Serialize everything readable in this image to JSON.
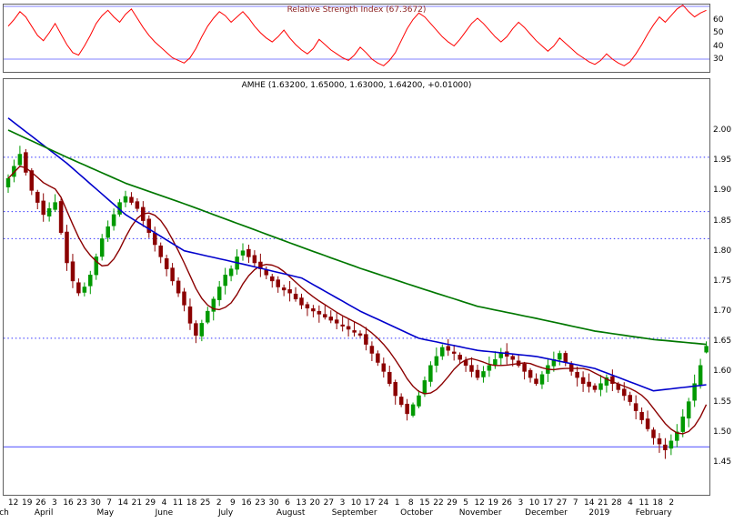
{
  "colors": {
    "background": "#ffffff",
    "border": "#606060",
    "rsi_line": "#ff0000",
    "rsi_ref": "#8080ff",
    "rsi_title": "#8b2020",
    "candle_up": "#009900",
    "candle_down": "#8b0000",
    "ma_long": "#007700",
    "ma_mid": "#0000cc",
    "ma_short": "#8b0000",
    "dotted_line": "#3333ff",
    "solid_line": "#7070ff",
    "text": "#000000"
  },
  "chart_data": [
    {
      "type": "line",
      "name": "rsi",
      "title": "Relative Strength Index (67.3672)",
      "current_value": 67.3672,
      "ylim": [
        22,
        74
      ],
      "yticks": [
        60,
        50,
        40,
        30
      ],
      "ref_lines": [
        70,
        30
      ],
      "legend_position": "top-center",
      "values": [
        55,
        60,
        66,
        62,
        55,
        48,
        44,
        50,
        57,
        49,
        41,
        35,
        33,
        40,
        48,
        57,
        63,
        67,
        62,
        58,
        64,
        68,
        61,
        54,
        48,
        43,
        39,
        35,
        31,
        29,
        27,
        31,
        38,
        47,
        55,
        61,
        66,
        63,
        58,
        62,
        66,
        61,
        55,
        50,
        46,
        43,
        47,
        52,
        46,
        41,
        37,
        34,
        38,
        45,
        41,
        37,
        34,
        31,
        29,
        33,
        39,
        35,
        30,
        27,
        25,
        29,
        35,
        44,
        53,
        60,
        65,
        62,
        57,
        52,
        47,
        43,
        40,
        45,
        51,
        57,
        61,
        57,
        52,
        47,
        43,
        47,
        53,
        58,
        54,
        49,
        44,
        40,
        36,
        40,
        46,
        42,
        38,
        34,
        31,
        28,
        26,
        29,
        34,
        30,
        27,
        25,
        28,
        34,
        41,
        49,
        56,
        62,
        58,
        63,
        68,
        71,
        66,
        62,
        65,
        67
      ]
    },
    {
      "type": "candlestick",
      "name": "price",
      "title": "AMHE (1.63200, 1.65000, 1.63000, 1.64200, +0.01000)",
      "symbol": "AMHE",
      "last": {
        "open": 1.632,
        "high": 1.65,
        "low": 1.63,
        "close": 1.642,
        "change": "+0.01000"
      },
      "ylim": [
        1.394,
        2.06
      ],
      "yticks": [
        "2.00",
        "1.95",
        "1.90",
        "1.85",
        "1.80",
        "1.75",
        "1.70",
        "1.65",
        "1.60",
        "1.55",
        "1.50",
        "1.45"
      ],
      "dotted_levels": [
        1.955,
        1.865,
        1.82,
        1.655
      ],
      "solid_level": 1.475,
      "closes": [
        1.92,
        1.94,
        1.96,
        1.93,
        1.9,
        1.88,
        1.86,
        1.87,
        1.88,
        1.83,
        1.78,
        1.75,
        1.73,
        1.74,
        1.76,
        1.79,
        1.82,
        1.84,
        1.86,
        1.88,
        1.89,
        1.88,
        1.87,
        1.85,
        1.83,
        1.81,
        1.79,
        1.77,
        1.75,
        1.73,
        1.71,
        1.68,
        1.66,
        1.68,
        1.7,
        1.72,
        1.74,
        1.76,
        1.77,
        1.79,
        1.8,
        1.79,
        1.78,
        1.77,
        1.76,
        1.75,
        1.74,
        1.735,
        1.73,
        1.72,
        1.71,
        1.705,
        1.7,
        1.695,
        1.69,
        1.685,
        1.68,
        1.675,
        1.67,
        1.665,
        1.66,
        1.645,
        1.63,
        1.615,
        1.6,
        1.58,
        1.56,
        1.545,
        1.53,
        1.545,
        1.56,
        1.585,
        1.61,
        1.625,
        1.64,
        1.635,
        1.63,
        1.62,
        1.61,
        1.6,
        1.59,
        1.6,
        1.61,
        1.62,
        1.63,
        1.625,
        1.62,
        1.61,
        1.6,
        1.59,
        1.58,
        1.595,
        1.61,
        1.62,
        1.63,
        1.615,
        1.6,
        1.59,
        1.58,
        1.575,
        1.57,
        1.58,
        1.59,
        1.58,
        1.57,
        1.56,
        1.55,
        1.535,
        1.52,
        1.505,
        1.49,
        1.48,
        1.47,
        1.485,
        1.5,
        1.525,
        1.55,
        1.58,
        1.61,
        1.642
      ],
      "series": [
        {
          "name": "long-ma-green",
          "anchors": [
            2.0,
            1.955,
            1.912,
            1.878,
            1.842,
            1.806,
            1.771,
            1.739,
            1.708,
            1.688,
            1.667,
            1.653,
            1.645
          ]
        },
        {
          "name": "mid-ma-blue",
          "anchors": [
            2.02,
            1.945,
            1.86,
            1.8,
            1.778,
            1.755,
            1.7,
            1.655,
            1.635,
            1.625,
            1.605,
            1.568,
            1.578
          ]
        },
        {
          "name": "short-ma-darkred",
          "window": 8
        }
      ],
      "anchor_indices": [
        0,
        10,
        20,
        30,
        40,
        50,
        60,
        70,
        80,
        90,
        100,
        110,
        119
      ],
      "x_axis": {
        "day_labels": [
          "12",
          "19",
          "26",
          "3",
          "16",
          "23",
          "30",
          "7",
          "14",
          "21",
          "29",
          "4",
          "11",
          "18",
          "25",
          "2",
          "9",
          "16",
          "23",
          "30",
          "6",
          "13",
          "20",
          "27",
          "3",
          "10",
          "17",
          "24",
          "1",
          "8",
          "15",
          "22",
          "29",
          "5",
          "12",
          "19",
          "26",
          "3",
          "10",
          "17",
          "27",
          "7",
          "14",
          "21",
          "28",
          "4",
          "11",
          "18",
          "2"
        ],
        "month_labels": [
          {
            "label": "ch",
            "f": 0.002
          },
          {
            "label": "April",
            "f": 0.058
          },
          {
            "label": "May",
            "f": 0.145
          },
          {
            "label": "June",
            "f": 0.228
          },
          {
            "label": "July",
            "f": 0.315
          },
          {
            "label": "August",
            "f": 0.407
          },
          {
            "label": "September",
            "f": 0.497
          },
          {
            "label": "October",
            "f": 0.585
          },
          {
            "label": "November",
            "f": 0.675
          },
          {
            "label": "December",
            "f": 0.768
          },
          {
            "label": "2019",
            "f": 0.843
          },
          {
            "label": "February",
            "f": 0.92
          }
        ]
      }
    }
  ]
}
